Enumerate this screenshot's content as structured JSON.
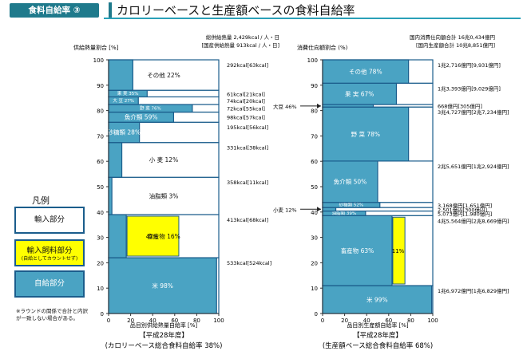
{
  "header": {
    "tag": "食料自給率 ③",
    "title": "カロリーベースと生産額ベースの食料自給率"
  },
  "legend": {
    "title": "凡例",
    "import_label": "輸入部分",
    "feed_label": "輸入飼料部分",
    "feed_sub": "(自給としてカウントせず)",
    "self_label": "自給部分",
    "note": "※ラウンドの関係で合計と内訳が一致しない場合がある。"
  },
  "colors": {
    "self": "#4aa3c3",
    "feed": "#ffff00",
    "import": "#ffffff",
    "border": "#1b5d8c",
    "accent": "#1f7a8c"
  },
  "chart_data": [
    {
      "type": "mosaic",
      "ylabel": "供給熱量割合 [%]",
      "xlabel": "品目別供給熱量自給率 [%]",
      "top_right": [
        "総供給熱量 2,429kcal / 人・日",
        "[国産供給熱量 913kcal / 人・日]"
      ],
      "subtitle": "【平成28年度】",
      "caption": "(カロリーベース総合食料自給率 38%)",
      "xlim": [
        0,
        100
      ],
      "ylim": [
        0,
        100
      ],
      "xticks": [
        "0",
        "20",
        "40",
        "60",
        "80",
        "100"
      ],
      "yticks": [
        "0",
        "10",
        "20",
        "30",
        "40",
        "50",
        "60",
        "70",
        "80",
        "90",
        "100"
      ],
      "segments": [
        {
          "name": "米",
          "share_range": [
            0,
            22
          ],
          "self_rate": 98,
          "label": "米 98%",
          "value_label": "533kcal[524kcal]"
        },
        {
          "name": "畜産物",
          "share_range": [
            22,
            39
          ],
          "self_rate": 16,
          "feed_rate": 47,
          "label": "畜産物 16%",
          "feed_label": "47%",
          "value_label": "413kcal[68kcal]"
        },
        {
          "name": "油脂類",
          "share_range": [
            39,
            53.7
          ],
          "self_rate": 3,
          "label": "油脂類 3%",
          "value_label": "358kcal[11kcal]"
        },
        {
          "name": "小麦",
          "share_range": [
            53.7,
            67.4
          ],
          "self_rate": 12,
          "label": "小 麦 12%",
          "value_label": "331kcal[38kcal]"
        },
        {
          "name": "砂糖類",
          "share_range": [
            67.4,
            75.4
          ],
          "self_rate": 28,
          "label": "砂糖類 28%",
          "value_label": "195kcal[56kcal]"
        },
        {
          "name": "魚介類",
          "share_range": [
            75.4,
            79.4
          ],
          "self_rate": 59,
          "label": "魚介類 59%",
          "value_label": "98kcal[57kcal]"
        },
        {
          "name": "野菜",
          "share_range": [
            79.4,
            82.4
          ],
          "self_rate": 76,
          "label": "野 菜 76%",
          "value_label": "72kcal[55kcal]"
        },
        {
          "name": "大豆",
          "share_range": [
            82.4,
            85.4
          ],
          "self_rate": 27,
          "label": "大 豆 27%",
          "value_label": "74kcal[20kcal]"
        },
        {
          "name": "果実",
          "share_range": [
            85.4,
            88.0
          ],
          "self_rate": 35,
          "label": "果 実 35%",
          "value_label": "61kcal[21kcal]"
        },
        {
          "name": "その他",
          "share_range": [
            88.0,
            100
          ],
          "self_rate": 22,
          "label": "その他 22%",
          "value_label": "292kcal[63kcal]"
        }
      ]
    },
    {
      "type": "mosaic",
      "ylabel": "消費仕向額割合 (%)",
      "xlabel": "品目別生産額自給率 [%]",
      "top_right": [
        "国内消費仕向額合計 16兆0,434億円",
        "[国内生産額合計 10兆8,851億円]"
      ],
      "subtitle": "【平成28年度】",
      "caption": "(生産額ベース総合食料自給率 68%)",
      "xlim": [
        0,
        100
      ],
      "ylim": [
        0,
        100
      ],
      "xticks": [
        "0",
        "20",
        "40",
        "60",
        "80",
        "100"
      ],
      "yticks": [
        "0",
        "10",
        "20",
        "30",
        "40",
        "50",
        "60",
        "70",
        "80",
        "90",
        "100"
      ],
      "side_labels": [
        {
          "text": "大豆 46%",
          "at": 81.8
        },
        {
          "text": "小麦 12%",
          "at": 41.1
        }
      ],
      "segments": [
        {
          "name": "米",
          "share_range": [
            0,
            11
          ],
          "self_rate": 99,
          "label": "米 99%",
          "value_label": "1兆6,972億円[1兆6,829億円]"
        },
        {
          "name": "畜産物",
          "share_range": [
            11,
            38.6
          ],
          "self_rate": 63,
          "feed_rate": 11,
          "label": "畜産物 63%",
          "feed_label": "11%",
          "value_label": "4兆5,564億円[2兆8,669億円]"
        },
        {
          "name": "油脂類",
          "share_range": [
            38.6,
            40.4
          ],
          "self_rate": 39,
          "label": "油脂類 39%",
          "value_label": "5,073億円[1,980億円]"
        },
        {
          "name": "小麦",
          "share_range": [
            40.4,
            41.8
          ],
          "self_rate": 12,
          "label": "",
          "value_label": "2,501億円[300億円]"
        },
        {
          "name": "砂糖類",
          "share_range": [
            41.8,
            43.8
          ],
          "self_rate": 52,
          "label": "砂糖類 52%",
          "value_label": "3,168億円[1,651億円]"
        },
        {
          "name": "魚介類",
          "share_range": [
            43.8,
            60.1
          ],
          "self_rate": 50,
          "label": "魚介類 50%",
          "value_label": "2兆5,651億円[1兆2,924億円]"
        },
        {
          "name": "野菜",
          "share_range": [
            60.1,
            81.4
          ],
          "self_rate": 78,
          "label": "野 菜 78%",
          "value_label": "3兆4,727億円[2兆7,234億円]"
        },
        {
          "name": "大豆",
          "share_range": [
            81.4,
            82.4
          ],
          "self_rate": 46,
          "label": "",
          "value_label": "668億円[305億円]"
        },
        {
          "name": "果実",
          "share_range": [
            82.4,
            90.8
          ],
          "self_rate": 67,
          "label": "果 実 67%",
          "value_label": "1兆3,393億円[9,029億円]"
        },
        {
          "name": "その他",
          "share_range": [
            90.8,
            100
          ],
          "self_rate": 78,
          "label": "その他 78%",
          "value_label": "1兆2,716億円[9,931億円]"
        }
      ]
    }
  ]
}
